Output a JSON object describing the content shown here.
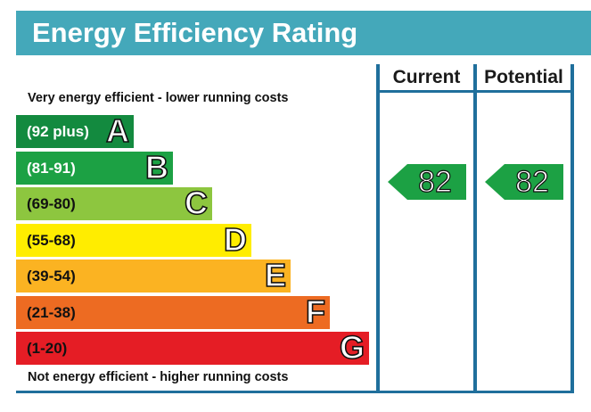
{
  "header": {
    "title": "Energy Efficiency Rating"
  },
  "columns": {
    "current": "Current",
    "potential": "Potential"
  },
  "notes": {
    "top": "Very energy efficient - lower running costs",
    "bottom": "Not energy efficient - higher running costs"
  },
  "bands": [
    {
      "range": "(92 plus)",
      "letter": "A",
      "color": "#138a3f",
      "text_color": "#ffffff"
    },
    {
      "range": "(81-91)",
      "letter": "B",
      "color": "#1ca144",
      "text_color": "#ffffff"
    },
    {
      "range": "(69-80)",
      "letter": "C",
      "color": "#8dc63f",
      "text_color": "#111111"
    },
    {
      "range": "(55-68)",
      "letter": "D",
      "color": "#ffed00",
      "text_color": "#111111"
    },
    {
      "range": "(39-54)",
      "letter": "E",
      "color": "#fbb322",
      "text_color": "#111111"
    },
    {
      "range": "(21-38)",
      "letter": "F",
      "color": "#ed6b22",
      "text_color": "#111111"
    },
    {
      "range": "(1-20)",
      "letter": "G",
      "color": "#e51d25",
      "text_color": "#111111"
    }
  ],
  "ratings": {
    "current": {
      "value": "82",
      "band": "B",
      "color": "#1ca144"
    },
    "potential": {
      "value": "82",
      "band": "B",
      "color": "#1ca144"
    }
  }
}
